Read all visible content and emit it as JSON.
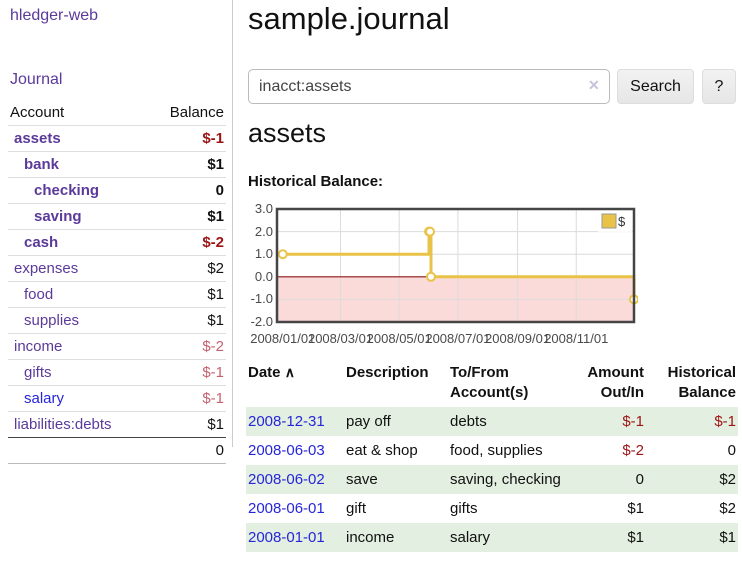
{
  "colors": {
    "purple_link": "#5b3a9a",
    "blue_link": "#2626d8",
    "negative_strong": "#9c1515",
    "negative_light": "#c4626e",
    "stripe_green": "#e3efe0",
    "series_gold": "#e9c348"
  },
  "sidebar": {
    "brand": "hledger-web",
    "nav_journal": "Journal",
    "accounts_table": {
      "col_account": "Account",
      "col_balance": "Balance",
      "rows": [
        {
          "name": "assets",
          "level": 0,
          "bold": true,
          "balance": "$-1",
          "bal_class": "bal-neg"
        },
        {
          "name": "bank",
          "level": 1,
          "bold": true,
          "balance": "$1",
          "bal_class": ""
        },
        {
          "name": "checking",
          "level": 2,
          "bold": true,
          "balance": "0",
          "bal_class": ""
        },
        {
          "name": "saving",
          "level": 2,
          "bold": true,
          "balance": "$1",
          "bal_class": ""
        },
        {
          "name": "cash",
          "level": 1,
          "bold": true,
          "balance": "$-2",
          "bal_class": "bal-neg"
        },
        {
          "name": "expenses",
          "level": 0,
          "bold": false,
          "balance": "$2",
          "bal_class": ""
        },
        {
          "name": "food",
          "level": 1,
          "bold": false,
          "balance": "$1",
          "bal_class": ""
        },
        {
          "name": "supplies",
          "level": 1,
          "bold": false,
          "balance": "$1",
          "bal_class": ""
        },
        {
          "name": "income",
          "level": 0,
          "bold": false,
          "balance": "$-2",
          "bal_class": "bal-neg-light"
        },
        {
          "name": "gifts",
          "level": 1,
          "bold": false,
          "balance": "$-1",
          "bal_class": "bal-neg-light"
        },
        {
          "name": "salary",
          "level": 1,
          "bold": false,
          "link_color": "blue",
          "balance": "$-1",
          "bal_class": "bal-neg-light"
        },
        {
          "name": "liabilities:debts",
          "level": 0,
          "bold": false,
          "balance": "$1",
          "bal_class": ""
        }
      ],
      "total": "0"
    }
  },
  "header": {
    "page_title": "sample.journal"
  },
  "search": {
    "value": "inacct:assets",
    "clear_icon": "✕",
    "button_label": "Search",
    "help_label": "?"
  },
  "main": {
    "account_heading": "assets",
    "chart_heading": "Historical Balance:"
  },
  "chart_data": {
    "type": "line",
    "title": "Historical Balance:",
    "step": true,
    "legend_label": "$",
    "legend_position": "top-right",
    "x_domain": [
      "2007-12-26",
      "2008-12-31"
    ],
    "ylim": [
      -2,
      3
    ],
    "y_ticks": [
      {
        "value": 3,
        "label": "3.0"
      },
      {
        "value": 2,
        "label": "2.0"
      },
      {
        "value": 1,
        "label": "1.0"
      },
      {
        "value": 0,
        "label": "0.0"
      },
      {
        "value": -1,
        "label": "-1.0"
      },
      {
        "value": -2,
        "label": "-2.0"
      }
    ],
    "x_ticks": [
      {
        "date": "2008-01-01",
        "label": "2008/01/01"
      },
      {
        "date": "2008-03-01",
        "label": "2008/03/01"
      },
      {
        "date": "2008-05-01",
        "label": "2008/05/01"
      },
      {
        "date": "2008-07-01",
        "label": "2008/07/01"
      },
      {
        "date": "2008-09-01",
        "label": "2008/09/01"
      },
      {
        "date": "2008-11-01",
        "label": "2008/11/01"
      }
    ],
    "series": [
      {
        "name": "$",
        "color": "#e9c348",
        "points": [
          {
            "date": "2008-01-01",
            "value": 1
          },
          {
            "date": "2008-06-01",
            "value": 2
          },
          {
            "date": "2008-06-02",
            "value": 2
          },
          {
            "date": "2008-06-03",
            "value": 0
          },
          {
            "date": "2008-12-31",
            "value": -1
          }
        ]
      }
    ],
    "negative_fill": "#fbdada",
    "zero_line_color": "#8b1616",
    "grid_color": "#dcdcdc",
    "border_color": "#454545",
    "grid_on": true
  },
  "register": {
    "columns": {
      "date": "Date",
      "sort_icon": "∧",
      "description": "Description",
      "accounts_line1": "To/From",
      "accounts_line2": "Account(s)",
      "amount_line1": "Amount",
      "amount_line2": "Out/In",
      "balance_line1": "Historical",
      "balance_line2": "Balance"
    },
    "rows": [
      {
        "date": "2008-12-31",
        "description": "pay off",
        "accounts": "debts",
        "amount": "$-1",
        "amount_class": "amt-neg",
        "balance": "$-1",
        "balance_class": "amt-neg"
      },
      {
        "date": "2008-06-03",
        "description": "eat & shop",
        "accounts": "food, supplies",
        "amount": "$-2",
        "amount_class": "amt-neg",
        "balance": "0",
        "balance_class": ""
      },
      {
        "date": "2008-06-02",
        "description": "save",
        "accounts": "saving, checking",
        "amount": "0",
        "amount_class": "",
        "balance": "$2",
        "balance_class": ""
      },
      {
        "date": "2008-06-01",
        "description": "gift",
        "accounts": "gifts",
        "amount": "$1",
        "amount_class": "",
        "balance": "$2",
        "balance_class": ""
      },
      {
        "date": "2008-01-01",
        "description": "income",
        "accounts": "salary",
        "amount": "$1",
        "amount_class": "",
        "balance": "$1",
        "balance_class": ""
      }
    ]
  }
}
